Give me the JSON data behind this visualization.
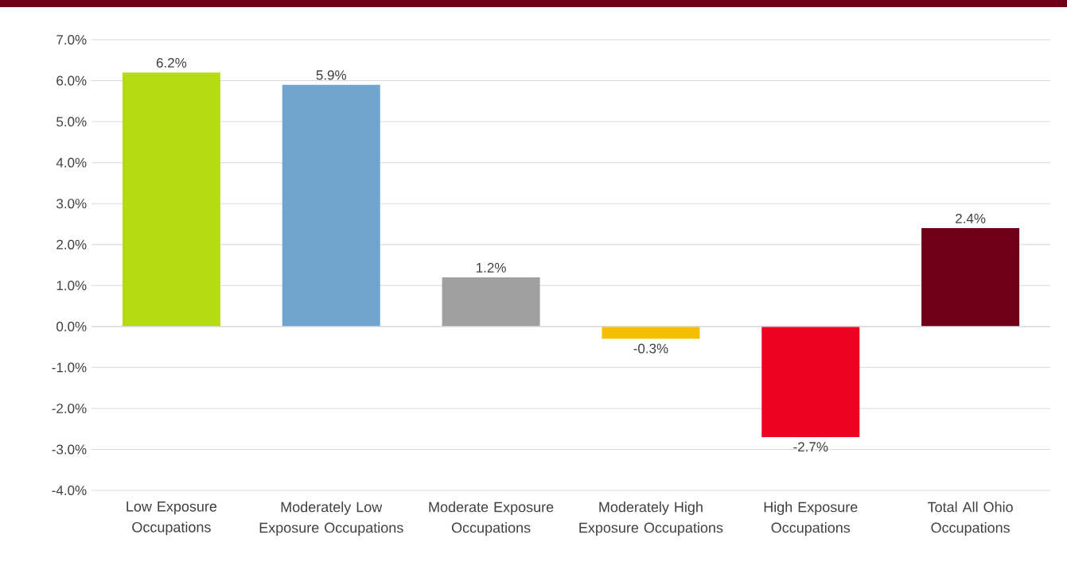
{
  "chart_data": {
    "type": "bar",
    "categories": [
      "Low Exposure Occupations",
      "Moderately Low Exposure Occupations",
      "Moderate Exposure Occupations",
      "Moderately High Exposure Occupations",
      "High Exposure Occupations",
      "Total All Ohio Occupations"
    ],
    "values": [
      6.2,
      5.9,
      1.2,
      -0.3,
      -2.7,
      2.4
    ],
    "colors": [
      "#b5dc10",
      "#71a5cd",
      "#a0a0a0",
      "#f5bf00",
      "#ee0020",
      "#6d0018"
    ],
    "value_labels": [
      "6.2%",
      "5.9%",
      "1.2%",
      "-0.3%",
      "-2.7%",
      "2.4%"
    ],
    "ylim": [
      -4,
      7
    ],
    "yticks": [
      {
        "value": -4,
        "label": "-4.0%"
      },
      {
        "value": -3,
        "label": "-3.0%"
      },
      {
        "value": -2,
        "label": "-2.0%"
      },
      {
        "value": -1,
        "label": "-1.0%"
      },
      {
        "value": 0,
        "label": "0.0%"
      },
      {
        "value": 1,
        "label": "1.0%"
      },
      {
        "value": 2,
        "label": "2.0%"
      },
      {
        "value": 3,
        "label": "3.0%"
      },
      {
        "value": 4,
        "label": "4.0%"
      },
      {
        "value": 5,
        "label": "5.0%"
      },
      {
        "value": 6,
        "label": "6.0%"
      },
      {
        "value": 7,
        "label": "7.0%"
      }
    ],
    "grid": "y"
  }
}
